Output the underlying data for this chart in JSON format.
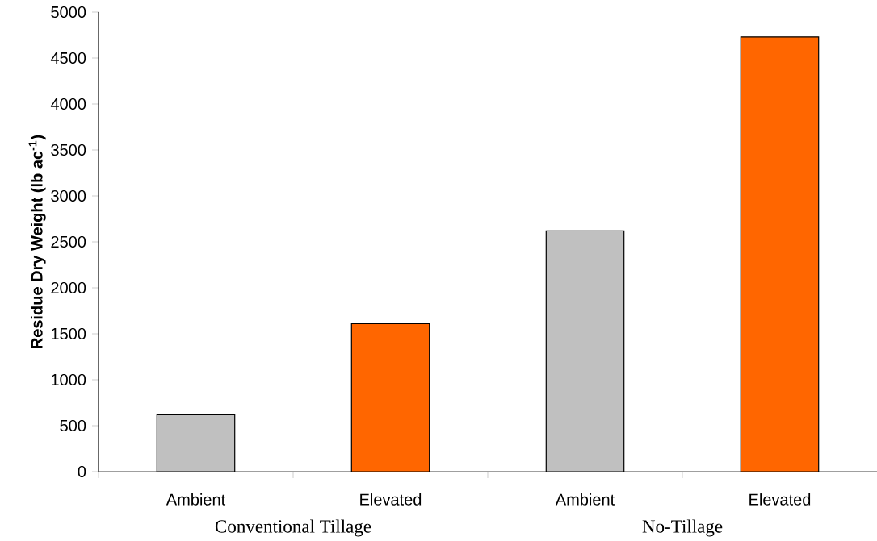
{
  "chart_data": {
    "type": "bar",
    "ylabel": "Residue Dry Weight (lb ac$^{-1}$)",
    "categories": [
      "Ambient",
      "Elevated",
      "Ambient",
      "Elevated"
    ],
    "values": [
      620,
      1610,
      2620,
      4730
    ],
    "colors": [
      "#c0c0c0",
      "#ff6600",
      "#c0c0c0",
      "#ff6600"
    ],
    "ylim": [
      0,
      5000
    ],
    "yticks": [
      0,
      500,
      1000,
      1500,
      2000,
      2500,
      3000,
      3500,
      4000,
      4500,
      5000
    ],
    "annotations": [
      "Conventional Tillage",
      "No-Tillage"
    ]
  }
}
